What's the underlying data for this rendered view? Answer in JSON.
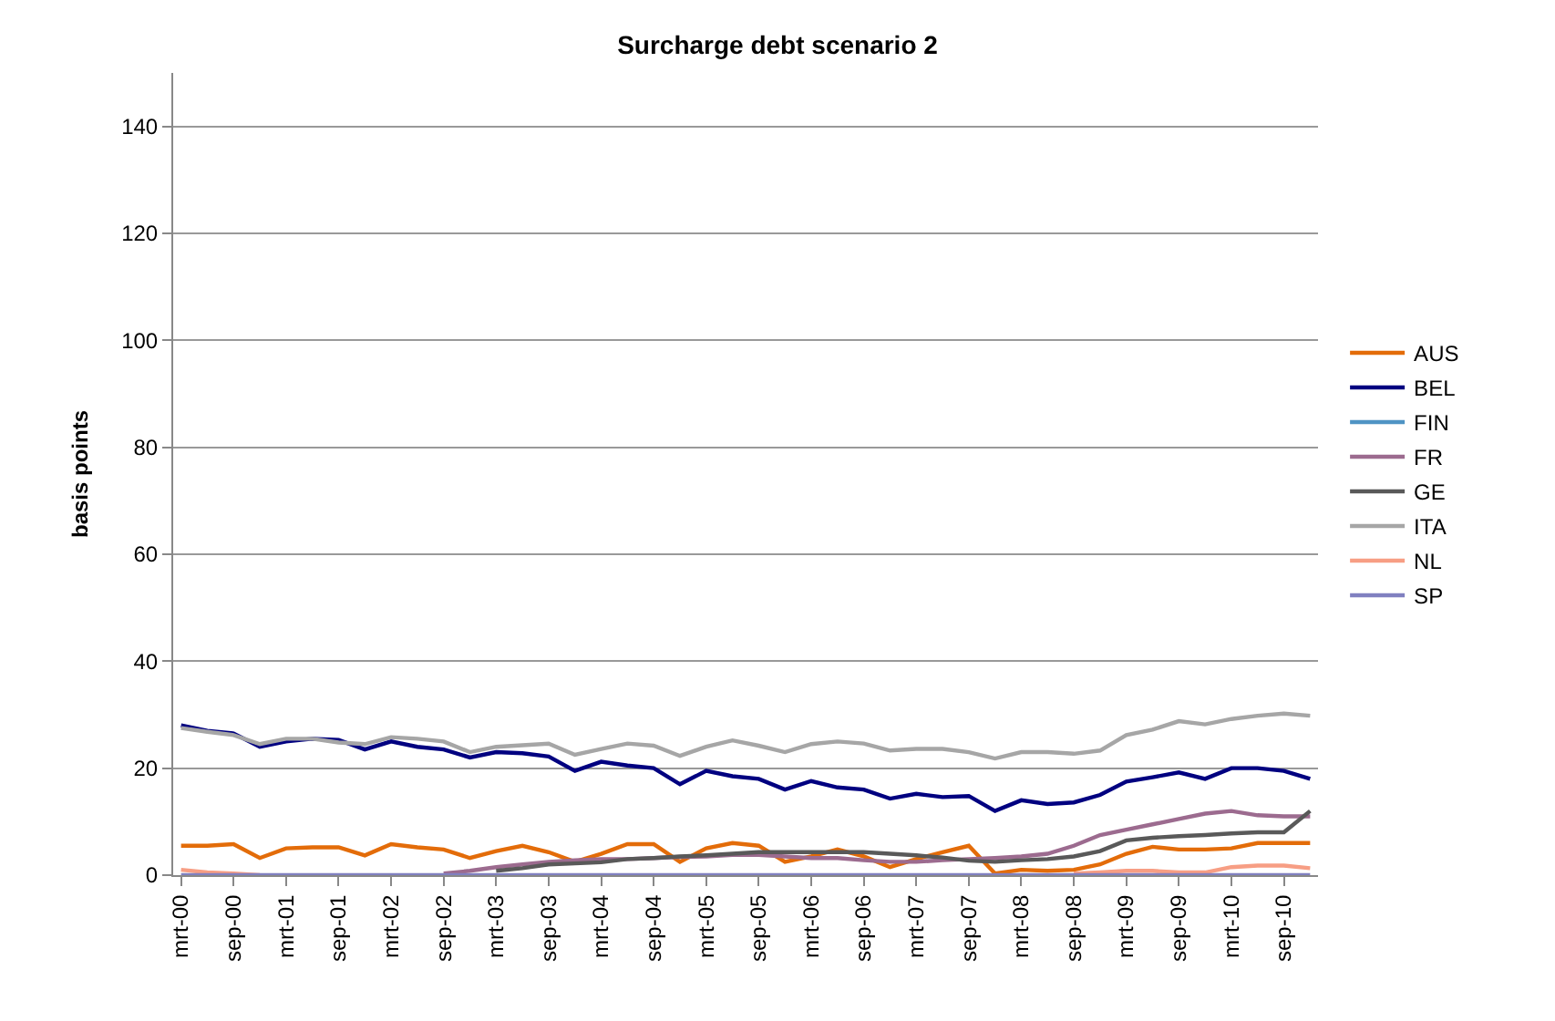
{
  "chart_data": {
    "type": "line",
    "title": "Surcharge debt scenario 2",
    "ylabel": "basis points",
    "categories": [
      "mrt-00",
      null,
      "sep-00",
      null,
      "mrt-01",
      null,
      "sep-01",
      null,
      "mrt-02",
      null,
      "sep-02",
      null,
      "mrt-03",
      null,
      "sep-03",
      null,
      "mrt-04",
      null,
      "sep-04",
      null,
      "mrt-05",
      null,
      "sep-05",
      null,
      "mrt-06",
      null,
      "sep-06",
      null,
      "mrt-07",
      null,
      "sep-07",
      null,
      "mrt-08",
      null,
      "sep-08",
      null,
      "mrt-09",
      null,
      "sep-09",
      null,
      "mrt-10",
      null,
      "sep-10",
      null
    ],
    "ylim": [
      0,
      150
    ],
    "yticks": [
      0,
      20,
      40,
      60,
      80,
      100,
      120,
      140
    ],
    "grid": "y",
    "legend": "right",
    "marker": "none",
    "line_style": "solid",
    "series": [
      {
        "name": "AUS",
        "color": "#e36c09",
        "values": [
          5.5,
          5.5,
          5.8,
          3.2,
          5,
          5.2,
          5.2,
          3.7,
          5.8,
          5.2,
          4.8,
          3.2,
          4.5,
          5.5,
          4.3,
          2.5,
          4,
          5.8,
          5.8,
          2.5,
          5,
          6,
          5.5,
          2.5,
          3.5,
          4.8,
          3.5,
          1.5,
          3,
          4.3,
          5.5,
          0.3,
          1,
          0.8,
          1,
          2,
          4,
          5.3,
          4.8,
          4.8,
          5,
          6,
          6,
          6
        ]
      },
      {
        "name": "BEL",
        "color": "#000080",
        "values": [
          28,
          27,
          26.5,
          24,
          25,
          25.5,
          25.3,
          23.5,
          25,
          24,
          23.5,
          22,
          23,
          22.8,
          22.2,
          19.5,
          21.2,
          20.5,
          20,
          17,
          19.5,
          18.5,
          18,
          16,
          17.6,
          16.4,
          16,
          14.3,
          15.2,
          14.6,
          14.8,
          12,
          14,
          13.3,
          13.6,
          15,
          17.5,
          18.3,
          19.2,
          18,
          20,
          20,
          19.5,
          18
        ]
      },
      {
        "name": "FIN",
        "color": "#4f94c4",
        "values": [
          null,
          null,
          null,
          null,
          null,
          null,
          null,
          null,
          null,
          null,
          null,
          null,
          null,
          null,
          null,
          null,
          null,
          null,
          null,
          null,
          null,
          null,
          null,
          null,
          null,
          null,
          null,
          null,
          null,
          null,
          null,
          null,
          null,
          null,
          null,
          null,
          null,
          null,
          null,
          null,
          null,
          null,
          null,
          null
        ]
      },
      {
        "name": "FR",
        "color": "#9c6b8f",
        "values": [
          null,
          null,
          null,
          null,
          null,
          null,
          null,
          null,
          null,
          null,
          0.3,
          0.8,
          1.5,
          2,
          2.5,
          2.8,
          3,
          3,
          3.2,
          3.4,
          3.5,
          3.8,
          3.8,
          3.5,
          3.2,
          3.2,
          2.8,
          2.5,
          2.5,
          2.8,
          3,
          3.2,
          3.5,
          4,
          5.5,
          7.5,
          8.5,
          9.5,
          10.5,
          11.5,
          12,
          11.2,
          11,
          11
        ]
      },
      {
        "name": "GE",
        "color": "#595959",
        "values": [
          null,
          null,
          null,
          null,
          null,
          null,
          null,
          null,
          null,
          null,
          null,
          null,
          0.8,
          1.3,
          2,
          2.2,
          2.4,
          3,
          3.2,
          3.5,
          3.7,
          4,
          4.3,
          4.3,
          4.3,
          4.3,
          4.3,
          4,
          3.7,
          3.3,
          2.7,
          2.5,
          2.8,
          3,
          3.5,
          4.5,
          6.5,
          7,
          7.3,
          7.5,
          7.8,
          8,
          8,
          12
        ]
      },
      {
        "name": "ITA",
        "color": "#a6a6a6",
        "values": [
          27.5,
          26.8,
          26.2,
          24.5,
          25.5,
          25.5,
          24.8,
          24.5,
          25.8,
          25.5,
          25,
          23,
          24,
          24.3,
          24.6,
          22.5,
          23.6,
          24.6,
          24.2,
          22.3,
          24,
          25.2,
          24.2,
          23,
          24.5,
          25,
          24.6,
          23.3,
          23.6,
          23.6,
          23,
          21.8,
          23,
          23,
          22.7,
          23.3,
          26.2,
          27.2,
          28.8,
          28.2,
          29.2,
          29.8,
          30.2,
          29.8
        ]
      },
      {
        "name": "NL",
        "color": "#f79e84",
        "values": [
          1,
          0.5,
          0.3,
          0,
          null,
          null,
          null,
          null,
          null,
          null,
          null,
          null,
          null,
          null,
          null,
          null,
          null,
          null,
          null,
          null,
          null,
          null,
          null,
          null,
          null,
          null,
          null,
          null,
          null,
          null,
          null,
          null,
          null,
          null,
          0.3,
          0.5,
          0.8,
          0.8,
          0.5,
          0.5,
          1.5,
          1.8,
          1.8,
          1.3
        ]
      },
      {
        "name": "SP",
        "color": "#8080c0",
        "values": [
          0,
          0,
          0,
          0,
          0,
          0,
          0,
          0,
          0,
          0,
          0,
          0,
          0,
          0,
          0,
          0,
          0,
          0,
          0,
          0,
          0,
          0,
          0,
          0,
          0,
          0,
          0,
          0,
          0,
          0,
          0,
          0,
          0,
          0,
          0,
          0,
          0,
          0,
          0,
          0,
          0,
          0,
          0,
          0
        ]
      }
    ]
  }
}
